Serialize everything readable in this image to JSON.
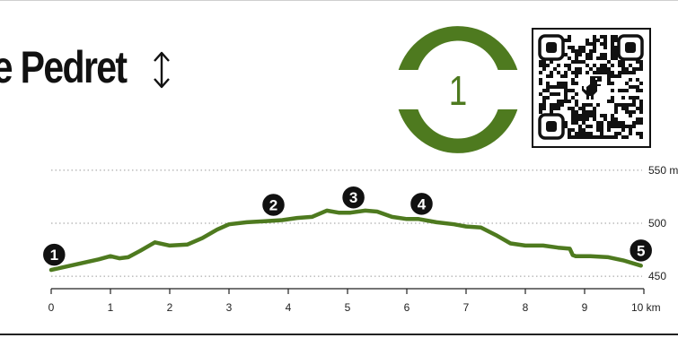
{
  "header": {
    "title": "le Pedret",
    "sort_icon": "up-down-arrow-icon",
    "route_number": "1",
    "qr_icon": "qr-code-icon",
    "qr_center_icon": "dinosaur-icon"
  },
  "colors": {
    "accent": "#4e7a1f",
    "marker": "#111111",
    "grid": "#9a9a9a",
    "axis": "#222222"
  },
  "chart_data": {
    "type": "line",
    "title": "",
    "xlabel": "",
    "ylabel": "",
    "xlim": [
      0,
      10
    ],
    "ylim": [
      440,
      555
    ],
    "grid": "horizontal dotted",
    "x_ticks": [
      0,
      1,
      2,
      3,
      4,
      5,
      6,
      7,
      8,
      9,
      10
    ],
    "x_tick_labels": [
      "0",
      "1",
      "2",
      "3",
      "4",
      "5",
      "6",
      "7",
      "8",
      "9",
      "10 km"
    ],
    "y_ticks": [
      450,
      500,
      550
    ],
    "y_tick_labels": [
      "450",
      "500",
      "550 m"
    ],
    "series": [
      {
        "x": [
          0,
          0.4,
          0.8,
          1.0,
          1.15,
          1.3,
          1.5,
          1.75,
          2.0,
          2.3,
          2.55,
          2.8,
          3.0,
          3.3,
          3.6,
          3.9,
          4.15,
          4.4,
          4.65,
          4.85,
          5.05,
          5.3,
          5.5,
          5.75,
          6.0,
          6.2,
          6.5,
          6.8,
          7.0,
          7.25,
          7.5,
          7.75,
          8.0,
          8.3,
          8.55,
          8.75,
          8.8,
          8.85,
          9.1,
          9.4,
          9.65,
          9.95
        ],
        "y": [
          456,
          461,
          466,
          469,
          467,
          468,
          474,
          482,
          479,
          480,
          486,
          494,
          499,
          501,
          502,
          503,
          505,
          506,
          512,
          510,
          510,
          512,
          511,
          506,
          504,
          504,
          501,
          499,
          497,
          496,
          489,
          481,
          479,
          479,
          477,
          476,
          470,
          469,
          469,
          468,
          465,
          460
        ]
      }
    ],
    "markers": [
      {
        "label": "1",
        "x": 0.05,
        "y": 456
      },
      {
        "label": "2",
        "x": 3.75,
        "y": 503
      },
      {
        "label": "3",
        "x": 5.1,
        "y": 510
      },
      {
        "label": "4",
        "x": 6.25,
        "y": 504
      },
      {
        "label": "5",
        "x": 9.95,
        "y": 460
      }
    ]
  }
}
